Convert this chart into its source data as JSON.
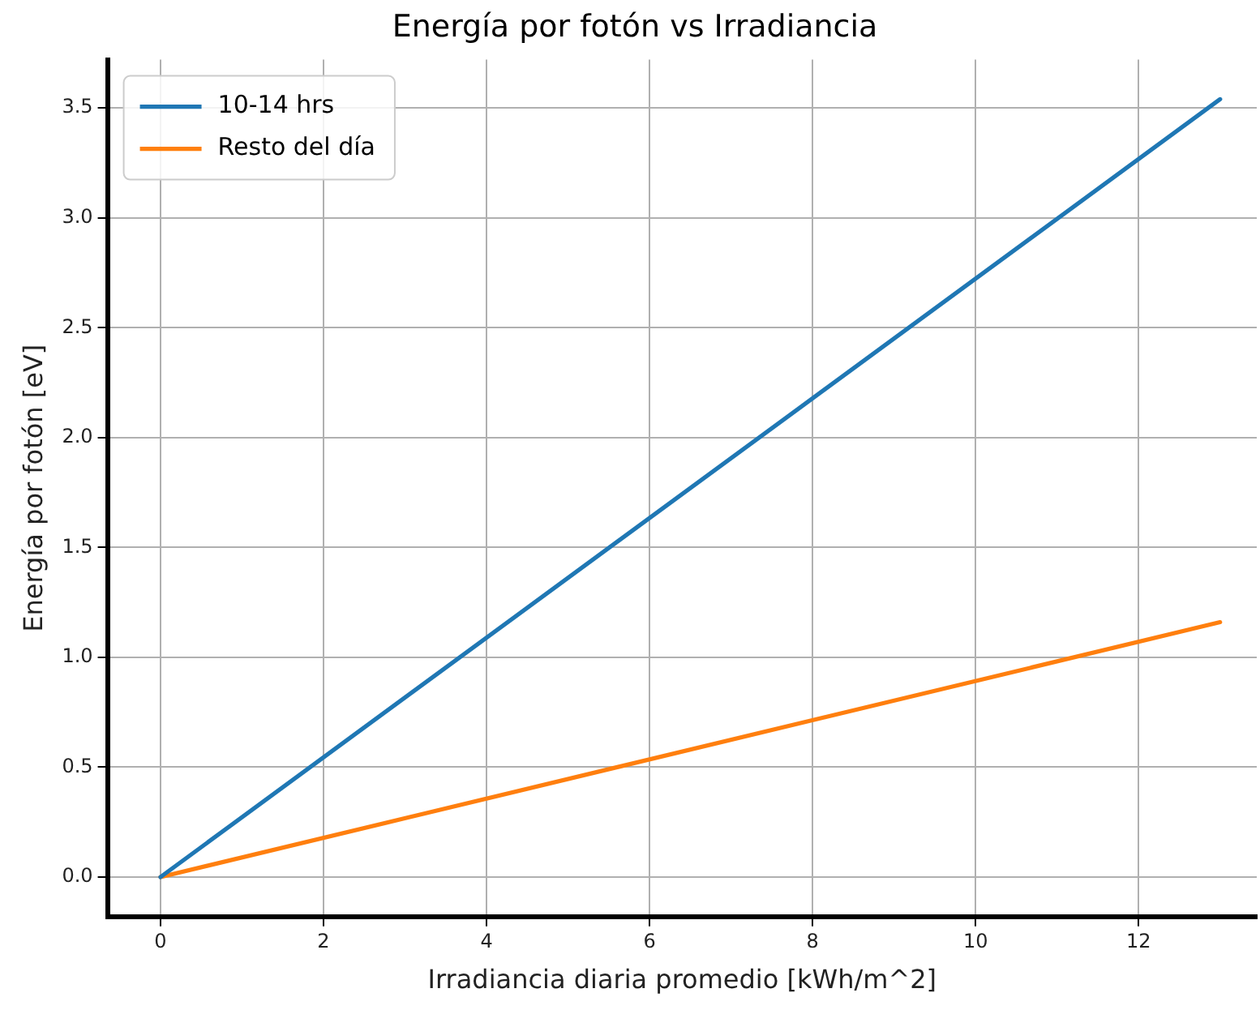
{
  "chart_data": {
    "type": "line",
    "title": "Energía por fotón vs Irradiancia",
    "xlabel": "Irradiancia diaria promedio [kWh/m^2]",
    "ylabel": "Energía por fotón [eV]",
    "x": [
      0,
      13
    ],
    "series": [
      {
        "name": "10-14 hrs",
        "color": "#1f77b4",
        "values": [
          0,
          3.54
        ]
      },
      {
        "name": "Resto del día",
        "color": "#ff7f0e",
        "values": [
          0,
          1.16
        ]
      }
    ],
    "xlim": [
      -0.65,
      13.45
    ],
    "xticks": [
      0,
      2,
      4,
      6,
      8,
      10,
      12
    ],
    "ylim": [
      -0.18,
      3.72
    ],
    "yticks": [
      {
        "value": 0,
        "label": "0.0"
      },
      {
        "value": 0.5,
        "label": "0.5"
      },
      {
        "value": 1,
        "label": "1.0"
      },
      {
        "value": 1.5,
        "label": "1.5"
      },
      {
        "value": 2,
        "label": "2.0"
      },
      {
        "value": 2.5,
        "label": "2.5"
      },
      {
        "value": 3,
        "label": "3.0"
      },
      {
        "value": 3.5,
        "label": "3.5"
      }
    ],
    "grid": true,
    "legend": "top left",
    "marker": "none",
    "line_style": "solid"
  }
}
